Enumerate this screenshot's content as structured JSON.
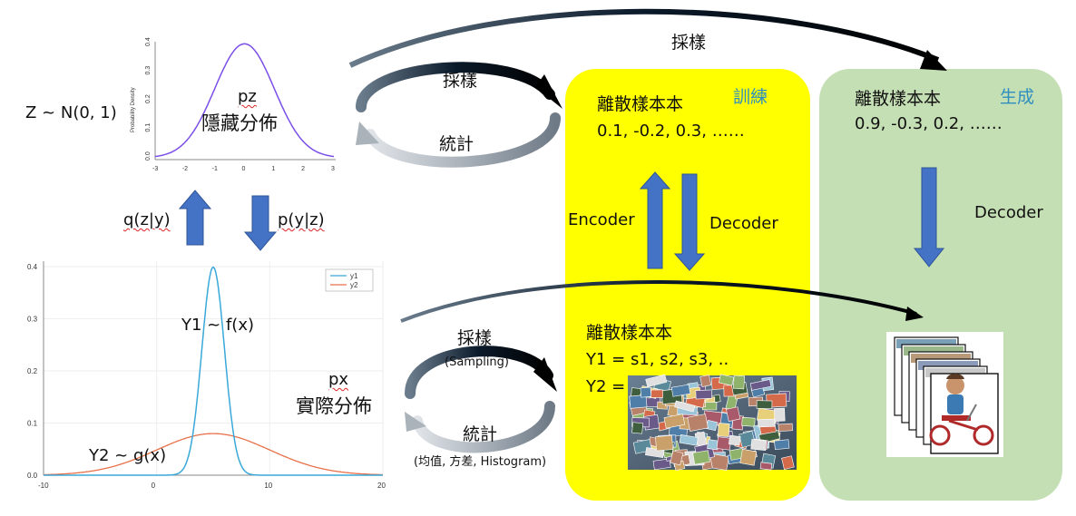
{
  "top_arrow_label": "採樣",
  "latent": {
    "equation": "Z ~ N(0, 1)",
    "name": "pz",
    "caption": "隱藏分佈",
    "y_axis_title": "Probability Density",
    "y_ticks": [
      "0.4",
      "0.3",
      "0.2",
      "0.1",
      "0.0"
    ],
    "x_ticks": [
      "-3",
      "-2",
      "-1",
      "0",
      "1",
      "2",
      "3"
    ]
  },
  "top_cycle": {
    "sample_label": "採樣",
    "stats_label": "統計"
  },
  "q_label": "q(z|y)",
  "p_label": "p(y|z)",
  "real": {
    "y1_equation": "Y1 ~ f(x)",
    "y2_equation": "Y2 ~ g(x)",
    "name": "px",
    "caption": "實際分佈",
    "legend": [
      "y1",
      "y2"
    ],
    "y_ticks": [
      "0.4",
      "0.3",
      "0.2",
      "0.1",
      "0.0"
    ],
    "x_ticks": [
      "-10",
      "0",
      "10",
      "20"
    ]
  },
  "bottom_cycle": {
    "sample_label": "採樣",
    "sample_sub": "(Sampling)",
    "stats_label": "統計",
    "stats_sub": "(均值, 方差, Histogram)"
  },
  "training": {
    "tag": "訓練",
    "top_title": "離散樣本本",
    "top_values": "0.1, -0.2, 0.3, ……",
    "encoder": "Encoder",
    "decoder": "Decoder",
    "bottom_title": "離散樣本本",
    "y1_values": "Y1 = s1, s2, s3, ..",
    "y2_prefix": "Y2 ="
  },
  "generation": {
    "tag": "生成",
    "title": "離散樣本本",
    "values": "0.9, -0.3, 0.2, ……",
    "decoder": "Decoder"
  },
  "colors": {
    "training_bg": "#ffff00",
    "generation_bg": "#c5dfb4",
    "tag_text": "#2e8fbf",
    "arrow_blue": "#4472c4",
    "curve_purple": "#7b4fe8",
    "y1_color": "#3aa8d8",
    "y2_color": "#e8704a"
  },
  "chart_data": [
    {
      "type": "line",
      "title": "",
      "ylabel": "Probability Density",
      "xlim": [
        -3,
        3
      ],
      "ylim": [
        0,
        0.4
      ],
      "series": [
        {
          "values_fn": "normal",
          "mean": 0,
          "sd": 1
        }
      ]
    },
    {
      "type": "line",
      "title": "",
      "xlim": [
        -10,
        20
      ],
      "ylim": [
        0,
        0.4
      ],
      "series": [
        {
          "name": "y1",
          "mean": 5,
          "sd": 1
        },
        {
          "name": "y2",
          "mean": 5,
          "sd": 5
        }
      ]
    }
  ]
}
